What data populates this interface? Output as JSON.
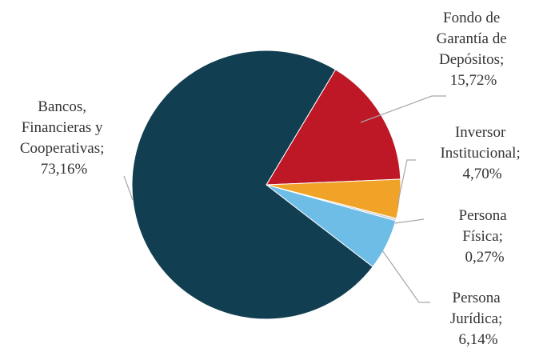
{
  "chart_data": {
    "type": "pie",
    "title": "",
    "start_angle_deg": 31,
    "direction": "clockwise",
    "slices": [
      {
        "name_lines": [
          "Fondo de",
          "Garantía de",
          "Depósitos;"
        ],
        "percent_label": "15,72%",
        "value": 15.72,
        "color": "#be1826"
      },
      {
        "name_lines": [
          "Inversor",
          "Institucional;"
        ],
        "percent_label": "4,70%",
        "value": 4.7,
        "color": "#f0a326"
      },
      {
        "name_lines": [
          "Persona",
          "Física;"
        ],
        "percent_label": "0,27%",
        "value": 0.27,
        "color": "#cfcfcf"
      },
      {
        "name_lines": [
          "Persona",
          "Jurídica;"
        ],
        "percent_label": "6,14%",
        "value": 6.14,
        "color": "#6dbde6"
      },
      {
        "name_lines": [
          "Bancos,",
          "Financieras y",
          "Cooperativas;"
        ],
        "percent_label": "73,16%",
        "value": 73.16,
        "color": "#123e52"
      }
    ]
  }
}
